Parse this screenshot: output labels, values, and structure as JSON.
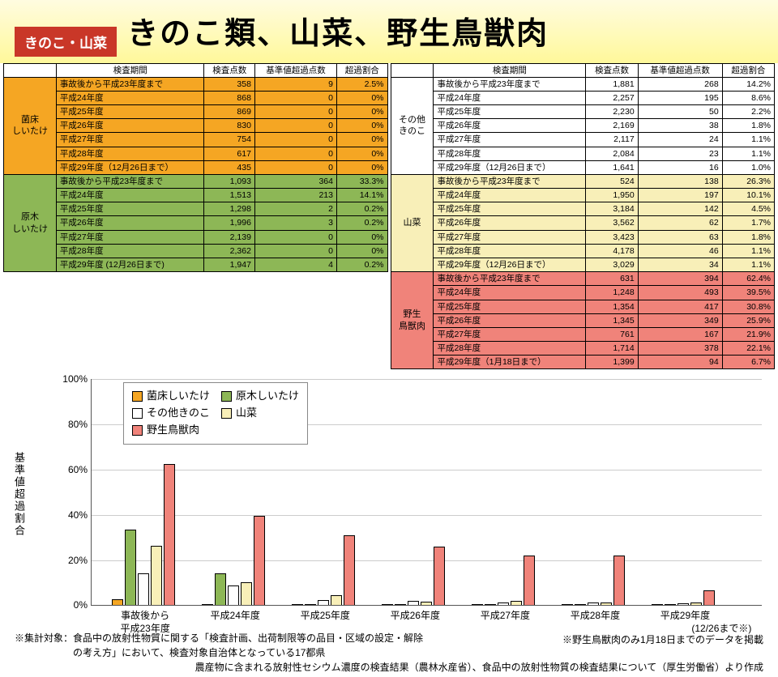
{
  "header": {
    "badge": "きのこ・山菜",
    "title": "きのこ類、山菜、野生鳥獣肉"
  },
  "table_headers": [
    "検査期間",
    "検査点数",
    "基準値超過点数",
    "超過割合"
  ],
  "sections": [
    {
      "name": "菌床\nしいたけ",
      "color": "#f5a623",
      "rows": [
        [
          "事故後から平成23年度まで",
          "358",
          "9",
          "2.5%"
        ],
        [
          "平成24年度",
          "868",
          "0",
          "0%"
        ],
        [
          "平成25年度",
          "869",
          "0",
          "0%"
        ],
        [
          "平成26年度",
          "830",
          "0",
          "0%"
        ],
        [
          "平成27年度",
          "754",
          "0",
          "0%"
        ],
        [
          "平成28年度",
          "617",
          "0",
          "0%"
        ],
        [
          "平成29年度（12月26日まで）",
          "435",
          "0",
          "0%"
        ]
      ]
    },
    {
      "name": "原木\nしいたけ",
      "color": "#8db756",
      "rows": [
        [
          "事故後から平成23年度まで",
          "1,093",
          "364",
          "33.3%"
        ],
        [
          "平成24年度",
          "1,513",
          "213",
          "14.1%"
        ],
        [
          "平成25年度",
          "1,298",
          "2",
          "0.2%"
        ],
        [
          "平成26年度",
          "1,996",
          "3",
          "0.2%"
        ],
        [
          "平成27年度",
          "2,139",
          "0",
          "0%"
        ],
        [
          "平成28年度",
          "2,362",
          "0",
          "0%"
        ],
        [
          "平成29年度 (12月26日まで)",
          "1,947",
          "4",
          "0.2%"
        ]
      ]
    },
    {
      "name": "その他\nきのこ",
      "color": "#ffffff",
      "rows": [
        [
          "事故後から平成23年度まで",
          "1,881",
          "268",
          "14.2%"
        ],
        [
          "平成24年度",
          "2,257",
          "195",
          "8.6%"
        ],
        [
          "平成25年度",
          "2,230",
          "50",
          "2.2%"
        ],
        [
          "平成26年度",
          "2,169",
          "38",
          "1.8%"
        ],
        [
          "平成27年度",
          "2,117",
          "24",
          "1.1%"
        ],
        [
          "平成28年度",
          "2,084",
          "23",
          "1.1%"
        ],
        [
          "平成29年度（12月26日まで）",
          "1,641",
          "16",
          "1.0%"
        ]
      ]
    },
    {
      "name": "山菜",
      "color": "#f8efb8",
      "rows": [
        [
          "事故後から平成23年度まで",
          "524",
          "138",
          "26.3%"
        ],
        [
          "平成24年度",
          "1,950",
          "197",
          "10.1%"
        ],
        [
          "平成25年度",
          "3,184",
          "142",
          "4.5%"
        ],
        [
          "平成26年度",
          "3,562",
          "62",
          "1.7%"
        ],
        [
          "平成27年度",
          "3,423",
          "63",
          "1.8%"
        ],
        [
          "平成28年度",
          "4,178",
          "46",
          "1.1%"
        ],
        [
          "平成29年度（12月26日まで）",
          "3,029",
          "34",
          "1.1%"
        ]
      ]
    },
    {
      "name": "野生\n鳥獣肉",
      "color": "#f0837a",
      "rows": [
        [
          "事故後から平成23年度まで",
          "631",
          "394",
          "62.4%"
        ],
        [
          "平成24年度",
          "1,248",
          "493",
          "39.5%"
        ],
        [
          "平成25年度",
          "1,354",
          "417",
          "30.8%"
        ],
        [
          "平成26年度",
          "1,345",
          "349",
          "25.9%"
        ],
        [
          "平成27年度",
          "761",
          "167",
          "21.9%"
        ],
        [
          "平成28年度",
          "1,714",
          "378",
          "22.1%"
        ],
        [
          "平成29年度（1月18日まで）",
          "1,399",
          "94",
          "6.7%"
        ]
      ]
    }
  ],
  "chart": {
    "ylabel": "基準値超過割合",
    "ymax": 100,
    "ytick": 20,
    "series": [
      {
        "name": "菌床しいたけ",
        "color": "#f5a623"
      },
      {
        "name": "原木しいたけ",
        "color": "#8db756"
      },
      {
        "name": "その他きのこ",
        "color": "#ffffff"
      },
      {
        "name": "山菜",
        "color": "#f8efb8"
      },
      {
        "name": "野生鳥獣肉",
        "color": "#f0837a"
      }
    ],
    "categories": [
      "事故後から\n平成23年度",
      "平成24年度",
      "平成25年度",
      "平成26年度",
      "平成27年度",
      "平成28年度",
      "平成29年度"
    ],
    "sublabel_right": "(12/26まで※)",
    "data": [
      [
        2.5,
        33.3,
        14.2,
        26.3,
        62.4
      ],
      [
        0,
        14.1,
        8.6,
        10.1,
        39.5
      ],
      [
        0,
        0.2,
        2.2,
        4.5,
        30.8
      ],
      [
        0,
        0.2,
        1.8,
        1.7,
        25.9
      ],
      [
        0,
        0,
        1.1,
        1.8,
        21.9
      ],
      [
        0,
        0,
        1.1,
        1.1,
        22.1
      ],
      [
        0,
        0.2,
        1.0,
        1.1,
        6.7
      ]
    ]
  },
  "footnotes": [
    "※集計対象：食品中の放射性物質に関する「検査計画、出荷制限等の品目・区域の設定・解除",
    "　　　　　　の考え方」において、検査対象自治体となっている17都県",
    "※野生鳥獣肉のみ1月18日までのデータを掲載"
  ],
  "source": "農産物に含まれる放射性セシウム濃度の検査結果（農林水産省）、食品中の放射性物質の検査結果について（厚生労働省）より作成"
}
